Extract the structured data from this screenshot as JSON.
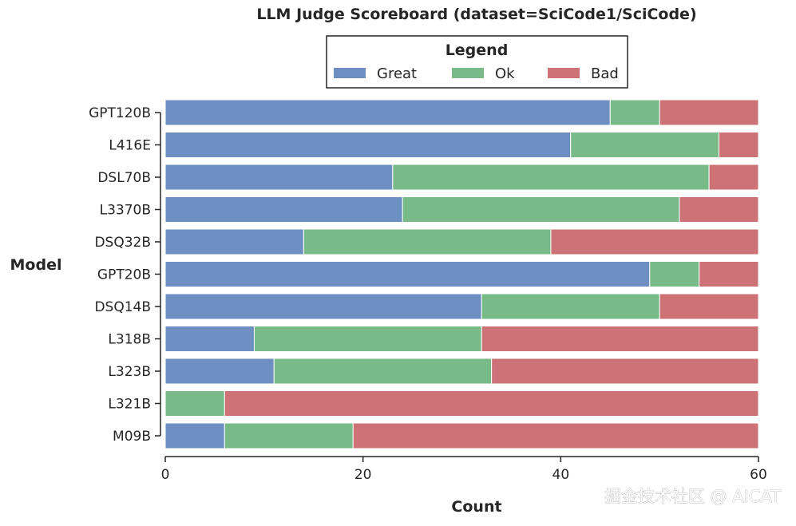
{
  "chart_data": {
    "type": "bar",
    "orientation": "horizontal",
    "stacked": true,
    "title": "LLM Judge Scoreboard (dataset=SciCode1/SciCode)",
    "xlabel": "Count",
    "ylabel": "Model",
    "xlim": [
      0,
      60
    ],
    "xticks": [
      0,
      20,
      40,
      60
    ],
    "grid": false,
    "legend": {
      "title": "Legend",
      "placement": "top-center"
    },
    "categories": [
      "GPT120B",
      "L416E",
      "DSL70B",
      "L3370B",
      "DSQ32B",
      "GPT20B",
      "DSQ14B",
      "L318B",
      "L323B",
      "L321B",
      "M09B"
    ],
    "series": [
      {
        "name": "Great",
        "color": "#6d8fc1",
        "values": [
          45,
          41,
          23,
          24,
          14,
          49,
          32,
          9,
          11,
          0,
          6
        ]
      },
      {
        "name": "Ok",
        "color": "#78ba88",
        "values": [
          5,
          15,
          32,
          28,
          25,
          5,
          18,
          23,
          22,
          6,
          13
        ]
      },
      {
        "name": "Bad",
        "color": "#cd7377",
        "values": [
          10,
          4,
          5,
          8,
          21,
          6,
          10,
          28,
          27,
          54,
          41
        ]
      }
    ]
  },
  "watermark": "掘金技术社区 @ AICAT"
}
